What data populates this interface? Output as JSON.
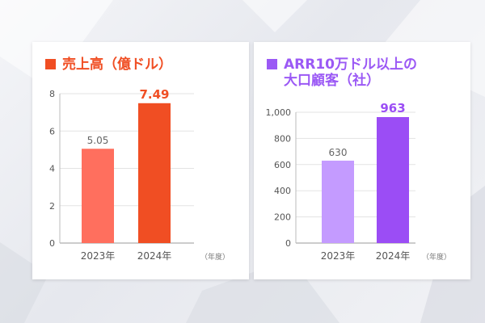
{
  "chart_data": [
    {
      "type": "bar",
      "title": "売上高（億ドル）",
      "categories": [
        "2023年",
        "2024年"
      ],
      "values": [
        5.05,
        7.49
      ],
      "value_labels": [
        "5.05",
        "7.49"
      ],
      "unit_label": "（年度）",
      "ylim": [
        0,
        8
      ],
      "yticks": [
        0,
        2,
        4,
        6,
        8
      ],
      "ytick_labels": [
        "0",
        "2",
        "4",
        "6",
        "8"
      ],
      "grid": true,
      "colors": {
        "accent": "#f04e23",
        "bars": [
          "#ff6f5e",
          "#f04e23"
        ],
        "labels": [
          "#666666",
          "#f04e23"
        ]
      }
    },
    {
      "type": "bar",
      "title": "ARR10万ドル以上の大口顧客（社）",
      "title_lines": [
        "ARR10万ドル以上の",
        "大口顧客（社）"
      ],
      "categories": [
        "2023年",
        "2024年"
      ],
      "values": [
        630,
        963
      ],
      "value_labels": [
        "630",
        "963"
      ],
      "unit_label": "（年度）",
      "ylim": [
        0,
        1000
      ],
      "yticks": [
        0,
        200,
        400,
        600,
        800,
        1000
      ],
      "ytick_labels": [
        "0",
        "200",
        "400",
        "600",
        "800",
        "1,000"
      ],
      "grid": true,
      "colors": {
        "accent": "#9b59f5",
        "bars": [
          "#c49bff",
          "#9b4df5"
        ],
        "labels": [
          "#666666",
          "#9b4df5"
        ]
      }
    }
  ]
}
